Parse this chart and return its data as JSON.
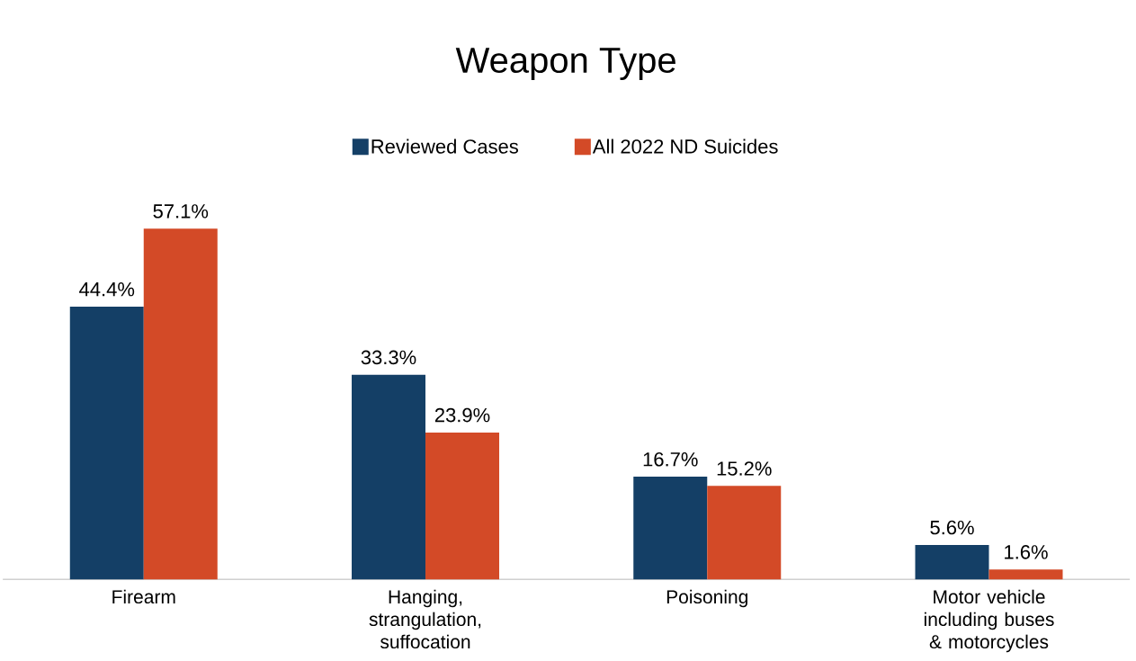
{
  "chart_data": {
    "type": "bar",
    "title": "Weapon Type",
    "categories": [
      "Firearm",
      "Hanging, strangulation, suffocation",
      "Poisoning",
      "Motor vehicle including buses & motorcycles"
    ],
    "series": [
      {
        "name": "Reviewed Cases",
        "color": "#143f66",
        "values": [
          44.4,
          33.3,
          16.7,
          5.6
        ],
        "value_labels": [
          "44.4%",
          "33.3%",
          "16.7%",
          "5.6%"
        ]
      },
      {
        "name": "All 2022 ND Suicides",
        "color": "#d34a27",
        "values": [
          57.1,
          23.9,
          15.2,
          1.6
        ],
        "value_labels": [
          "57.1%",
          "23.9%",
          "15.2%",
          "1.6%"
        ]
      }
    ],
    "legend": "top"
  }
}
